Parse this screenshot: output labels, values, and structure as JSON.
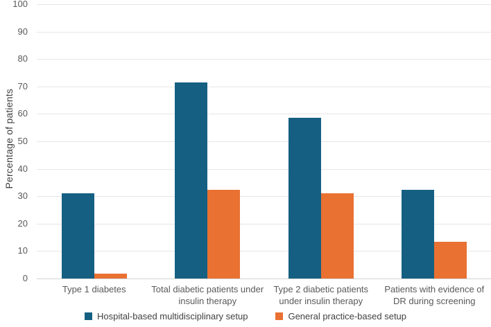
{
  "chart_data": {
    "type": "bar",
    "title": "",
    "xlabel": "",
    "ylabel": "Percentage of patients",
    "ylim": [
      0,
      100
    ],
    "ytick_step": 10,
    "yticks": [
      0,
      10,
      20,
      30,
      40,
      50,
      60,
      70,
      80,
      90,
      100
    ],
    "grid": true,
    "legend_position": "bottom",
    "categories": [
      "Type 1 diabetes",
      "Total diabetic patients under insulin therapy",
      "Type 2 diabetic patients under insulin therapy",
      "Patients with evidence of DR during screening"
    ],
    "series": [
      {
        "name": "Hospital-based multidisciplinary setup",
        "color": "#156082",
        "values": [
          31,
          71.5,
          58.6,
          32.4
        ]
      },
      {
        "name": "General practice-based setup",
        "color": "#E97132",
        "values": [
          1.7,
          32.2,
          31,
          13.5
        ]
      }
    ]
  },
  "colors": {
    "gridline": "#e6e6e6",
    "axis_line": "#d2d2d2",
    "tick_label": "#595959",
    "legend_text": "#404040",
    "background": "#ffffff"
  }
}
